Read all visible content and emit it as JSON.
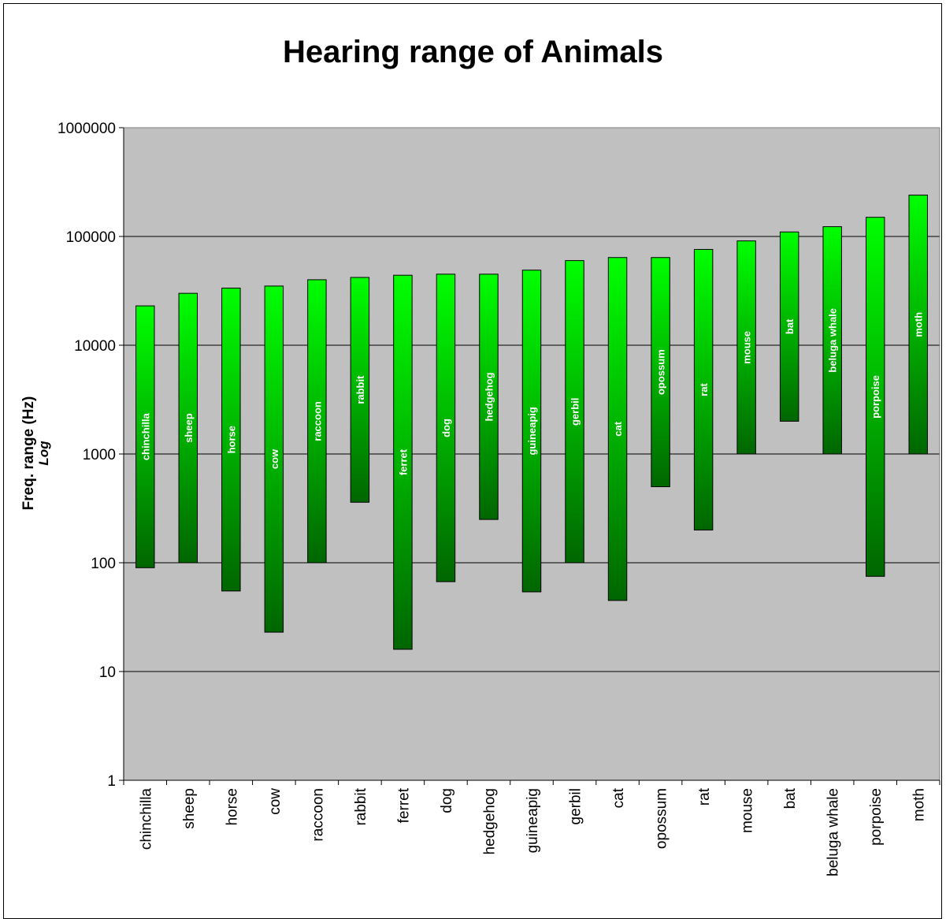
{
  "chart_data": {
    "type": "bar",
    "subtype": "floating-range",
    "title": "Hearing range of Animals",
    "xlabel": "",
    "ylabel": "Freq. range (Hz)",
    "ylabel_sub": "Log",
    "yscale": "log",
    "ylim": [
      1,
      1000000
    ],
    "yticks": [
      "1",
      "10",
      "100",
      "1000",
      "10000",
      "100000",
      "1000000"
    ],
    "grid": true,
    "background": "#c0c0c0",
    "bar_color": "#00cc00",
    "categories": [
      "chinchilla",
      "sheep",
      "horse",
      "cow",
      "raccoon",
      "rabbit",
      "ferret",
      "dog",
      "hedgehog",
      "guineapig",
      "gerbil",
      "cat",
      "opossum",
      "rat",
      "mouse",
      "bat",
      "beluga whale",
      "porpoise",
      "moth"
    ],
    "series": [
      {
        "low": [
          90,
          100,
          55,
          23,
          100,
          360,
          16,
          67,
          250,
          54,
          100,
          45,
          500,
          200,
          1000,
          2000,
          1000,
          75,
          1000
        ],
        "high": [
          23000,
          30000,
          33500,
          35000,
          40000,
          42000,
          44000,
          45000,
          45000,
          49000,
          60000,
          64000,
          64000,
          76000,
          91000,
          110000,
          123000,
          150000,
          240000
        ]
      }
    ]
  }
}
